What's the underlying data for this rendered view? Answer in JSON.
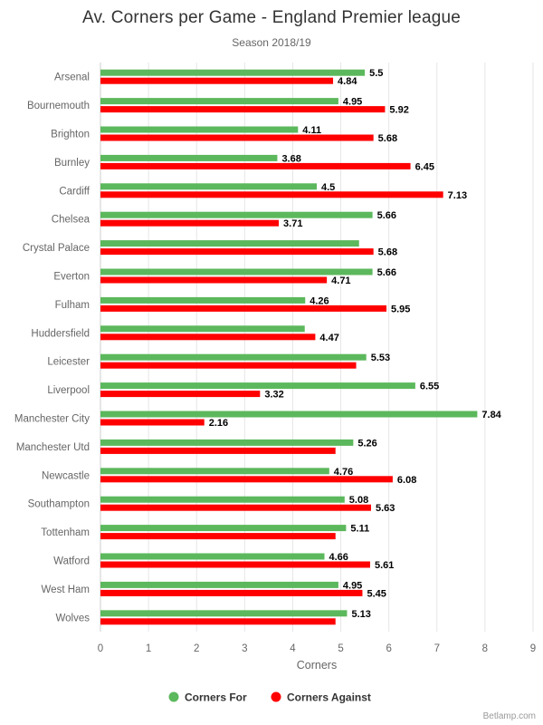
{
  "chart_data": {
    "type": "bar",
    "orientation": "horizontal",
    "title": "Av. Corners per Game - England Premier league",
    "subtitle": "Season 2018/19",
    "xlabel": "Corners",
    "ylabel": "",
    "xlim": [
      0,
      9
    ],
    "ticks": [
      "0",
      "1",
      "2",
      "3",
      "4",
      "5",
      "6",
      "7",
      "8",
      "9"
    ],
    "grid": true,
    "legend_position": "bottom-center",
    "categories": [
      "Arsenal",
      "Bournemouth",
      "Brighton",
      "Burnley",
      "Cardiff",
      "Chelsea",
      "Crystal Palace",
      "Everton",
      "Fulham",
      "Huddersfield",
      "Leicester",
      "Liverpool",
      "Manchester City",
      "Manchester Utd",
      "Newcastle",
      "Southampton",
      "Tottenham",
      "Watford",
      "West Ham",
      "Wolves"
    ],
    "series": [
      {
        "name": "Corners For",
        "color": "#5cb85c",
        "values": [
          5.5,
          4.95,
          4.11,
          3.68,
          4.5,
          5.66,
          5.38,
          5.66,
          4.26,
          4.25,
          5.53,
          6.55,
          7.84,
          5.26,
          4.76,
          5.08,
          5.11,
          4.66,
          4.95,
          5.13
        ],
        "labels": [
          "5.5",
          "4.95",
          "4.11",
          "3.68",
          "4.5",
          "5.66",
          "",
          "5.66",
          "4.26",
          "",
          "5.53",
          "6.55",
          "7.84",
          "5.26",
          "4.76",
          "5.08",
          "5.11",
          "4.66",
          "4.95",
          "5.13"
        ]
      },
      {
        "name": "Corners Against",
        "color": "#ff0000",
        "values": [
          4.84,
          5.92,
          5.68,
          6.45,
          7.13,
          3.71,
          5.68,
          4.71,
          5.95,
          4.47,
          5.32,
          3.32,
          2.16,
          4.89,
          6.08,
          5.63,
          4.89,
          5.61,
          5.45,
          4.89
        ],
        "labels": [
          "4.84",
          "5.92",
          "5.68",
          "6.45",
          "7.13",
          "3.71",
          "5.68",
          "4.71",
          "5.95",
          "4.47",
          "",
          "3.32",
          "2.16",
          "",
          "6.08",
          "5.63",
          "",
          "5.61",
          "5.45",
          ""
        ]
      }
    ]
  },
  "credits": "Betlamp.com"
}
